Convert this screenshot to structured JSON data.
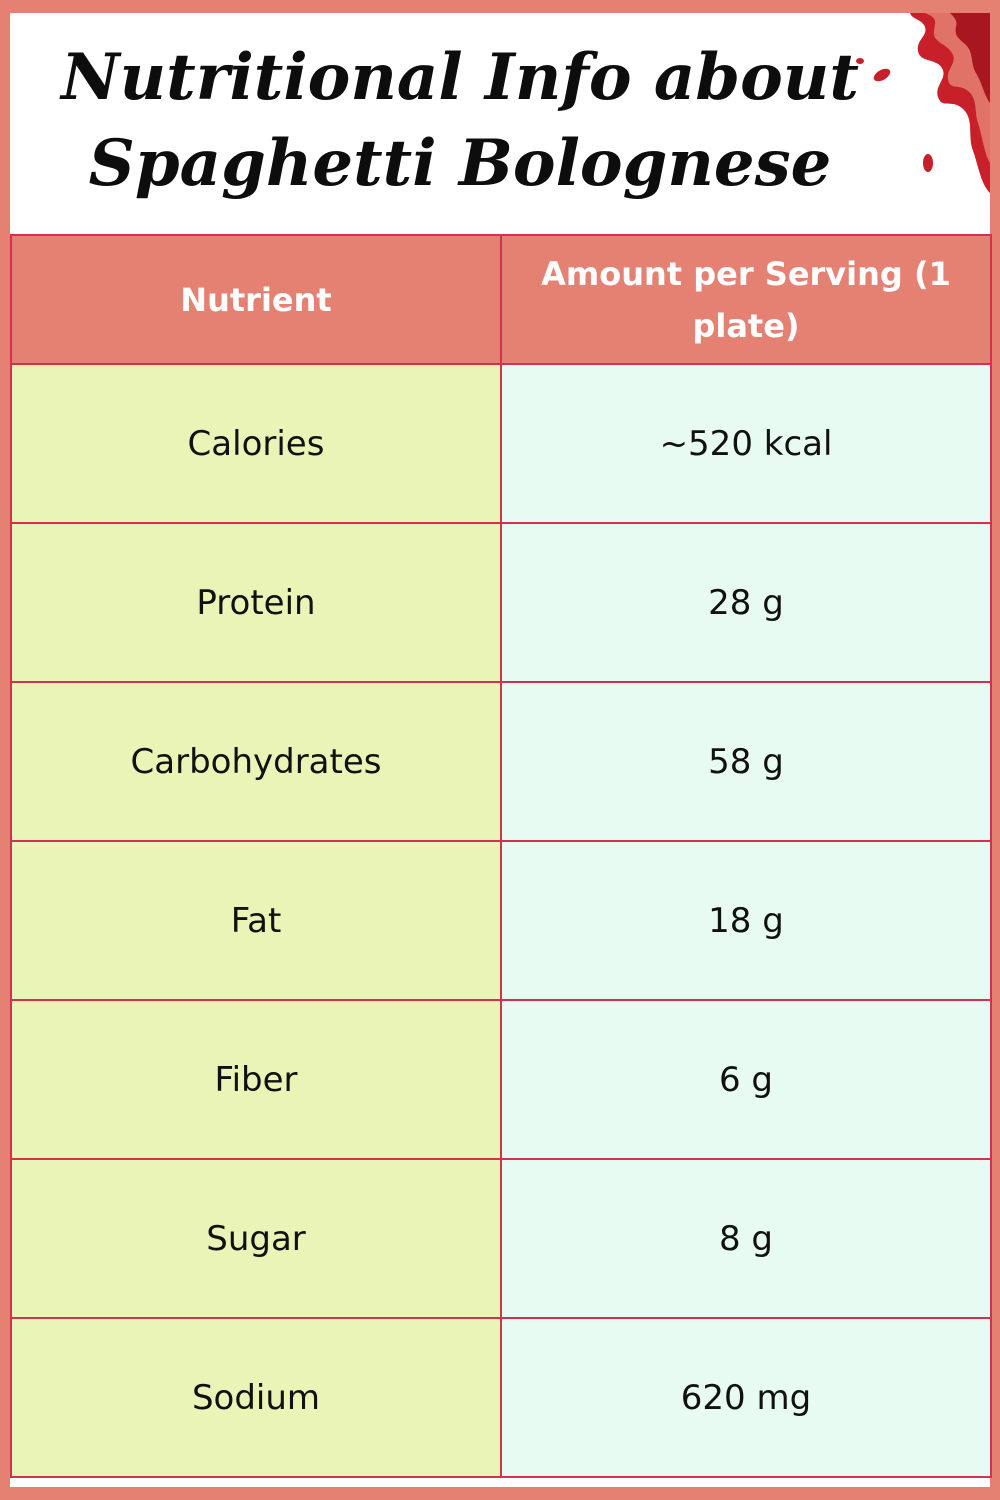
{
  "title": {
    "line1": "Nutritional Info about",
    "line2": "Spaghetti Bolognese"
  },
  "table": {
    "headers": [
      "Nutrient",
      "Amount per Serving (1 plate)"
    ],
    "rows": [
      {
        "nutrient": "Calories",
        "amount": "~520 kcal"
      },
      {
        "nutrient": "Protein",
        "amount": "28 g"
      },
      {
        "nutrient": "Carbohydrates",
        "amount": "58 g"
      },
      {
        "nutrient": "Fat",
        "amount": "18 g"
      },
      {
        "nutrient": "Fiber",
        "amount": "6 g"
      },
      {
        "nutrient": "Sugar",
        "amount": "8 g"
      },
      {
        "nutrient": "Sodium",
        "amount": "620 mg"
      }
    ]
  },
  "colors": {
    "frame": "#e58172",
    "header_bg": "#e58172",
    "grid_lines": "#d4304f",
    "nutrient_col_bg": "#e9f4b6",
    "amount_col_bg": "#e8fbf2",
    "sauce_splash": "#c8202a"
  },
  "icons": [
    "sauce-splash-icon"
  ]
}
